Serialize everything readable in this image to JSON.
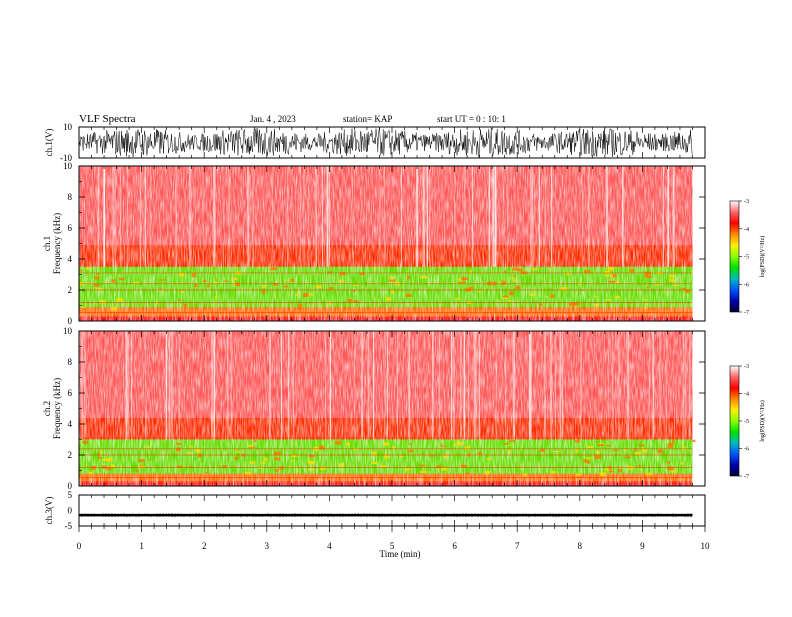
{
  "header": {
    "title": "VLF Spectra",
    "date": "Jan. 4 , 2023",
    "station": "station= KAP",
    "start": "start UT =  0 : 10: 1"
  },
  "colorbar": {
    "label": "log(PSD)(V²/Hz)",
    "ticks": [
      "-3",
      "-4",
      "-5",
      "-6",
      "-7"
    ],
    "colors": [
      "#ffffff",
      "#ff6666",
      "#ff0000",
      "#ff8800",
      "#ffee00",
      "#88ff00",
      "#00e000",
      "#00bbbb",
      "#0055ff",
      "#0000aa",
      "#000033"
    ]
  },
  "chart_data": [
    {
      "type": "line",
      "panel": "ch1-waveform",
      "ylabel": "ch.1(V)",
      "ylim": [
        -10,
        10
      ],
      "yticks": [
        "10",
        "-10"
      ],
      "xlim": [
        0,
        10
      ],
      "description_values": {
        "amplitude_range_V": [
          -9.5,
          9.5
        ]
      }
    },
    {
      "type": "heatmap",
      "panel": "ch1-spectrogram",
      "ylabel": "ch.1 Frequency (kHz)",
      "ylim": [
        0,
        10
      ],
      "yticks": [
        "0",
        "2",
        "4",
        "6",
        "8",
        "10"
      ],
      "xlim": [
        0,
        10
      ],
      "data_end_min": 9.8,
      "bands_kHz": [
        {
          "from": 0,
          "to": 0.3,
          "level": "red"
        },
        {
          "from": 0.3,
          "to": 0.9,
          "level": "orange"
        },
        {
          "from": 0.9,
          "to": 3.5,
          "level": "green"
        },
        {
          "from": 3.5,
          "to": 4.9,
          "level": "red-orange"
        },
        {
          "from": 4.9,
          "to": 10,
          "level": "pink"
        }
      ],
      "color_range_log": [
        -7,
        -3
      ]
    },
    {
      "type": "heatmap",
      "panel": "ch2-spectrogram",
      "ylabel": "ch.2 Frequency (kHz)",
      "ylim": [
        0,
        10
      ],
      "yticks": [
        "0",
        "2",
        "4",
        "6",
        "8",
        "10"
      ],
      "xlim": [
        0,
        10
      ],
      "data_end_min": 9.8,
      "bands_kHz": [
        {
          "from": 0,
          "to": 0.3,
          "level": "red"
        },
        {
          "from": 0.3,
          "to": 0.8,
          "level": "orange"
        },
        {
          "from": 0.8,
          "to": 3.0,
          "level": "green"
        },
        {
          "from": 3.0,
          "to": 4.4,
          "level": "red-orange"
        },
        {
          "from": 4.4,
          "to": 10,
          "level": "pink"
        }
      ],
      "color_range_log": [
        -7,
        -3
      ]
    },
    {
      "type": "line",
      "panel": "ch3-waveform",
      "ylabel": "ch.3(V)",
      "ylim": [
        -5,
        5
      ],
      "yticks": [
        "5",
        "0",
        "-5"
      ],
      "xlim": [
        0,
        10
      ],
      "xlabel": "Time (min)",
      "xticks": [
        "0",
        "1",
        "2",
        "3",
        "4",
        "5",
        "6",
        "7",
        "8",
        "9",
        "10"
      ],
      "description_values": {
        "level_V": -1.5,
        "band_halfwidth_V": 0.4
      }
    }
  ]
}
